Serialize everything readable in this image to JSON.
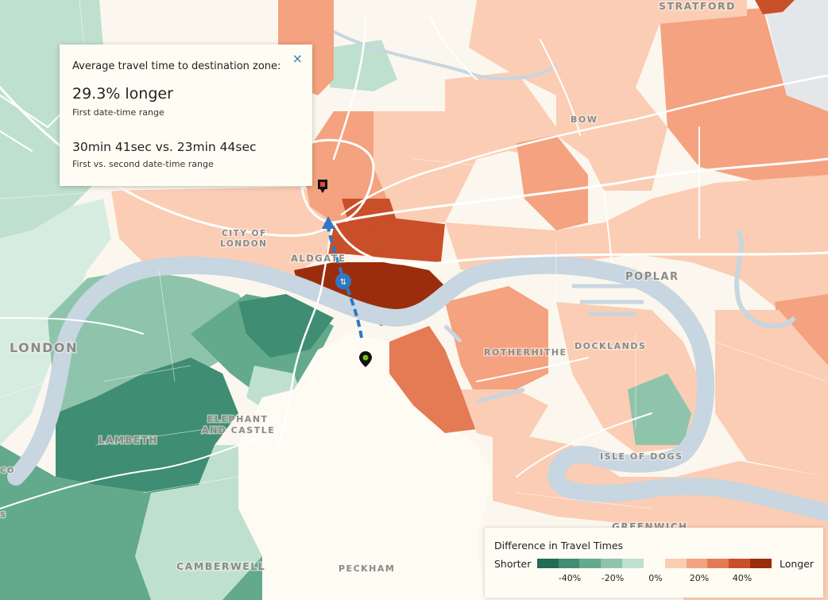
{
  "tooltip": {
    "title": "Average travel time to destination zone:",
    "value_big": "29.3% longer",
    "value_big_caption": "First date-time range",
    "value_compare": "30min 41sec vs. 23min 44sec",
    "value_compare_caption": "First vs. second date-time range",
    "close_symbol": "×"
  },
  "places": {
    "stratford": "STRATFORD",
    "bow": "BOW",
    "city_of_london_1": "CITY OF",
    "city_of_london_2": "LONDON",
    "aldgate": "ALDGATE",
    "poplar": "POPLAR",
    "london": "LONDON",
    "rotherhithe": "ROTHERHITHE",
    "docklands": "DOCKLANDS",
    "elephant_1": "ELEPHANT",
    "elephant_2": "AND CASTLE",
    "lambeth": "LAMBETH",
    "isle_of_dogs": "ISLE OF DOGS",
    "greenwich": "GREENWICH",
    "camberwell": "CAMBERWELL",
    "peckham": "PECKHAM",
    "edge_co": "CO",
    "edge_s": "S"
  },
  "legend": {
    "title": "Difference in Travel Times",
    "shorter": "Shorter",
    "longer": "Longer",
    "colors_shorter": [
      "#226b55",
      "#3f8d72",
      "#63a98c",
      "#8ec4ab",
      "#bfe0cf"
    ],
    "colors_longer": [
      "#fbcdb4",
      "#f4a27f",
      "#e47b55",
      "#c94f29",
      "#9b2d0c"
    ],
    "ticks": [
      "-40%",
      "-20%",
      "0%",
      "20%",
      "40%"
    ]
  },
  "colors": {
    "river": "#c7d6e0",
    "road": "#ffffff",
    "route": "#2f78c4",
    "origin_marker": "#111111",
    "destination_marker": "#7bbf1e"
  },
  "markers": {
    "origin": "origin-pin-icon",
    "destination": "destination-pin-icon",
    "transfer": "transfer-icon"
  }
}
